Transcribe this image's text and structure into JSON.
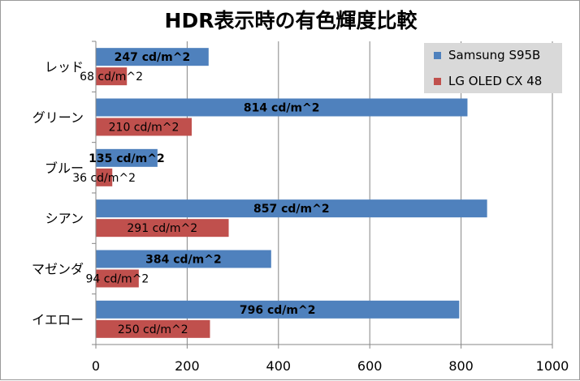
{
  "chart_data": {
    "type": "bar",
    "orientation": "horizontal",
    "title": "HDR表示時の有色輝度比較",
    "categories": [
      "レッド",
      "グリーン",
      "ブルー",
      "シアン",
      "マゼンダ",
      "イエロー"
    ],
    "series": [
      {
        "name": "Samsung S95B",
        "color": "#4f81bd",
        "values": [
          247,
          814,
          135,
          857,
          384,
          796
        ],
        "labels": [
          "247 cd/m^2",
          "814 cd/m^2",
          "135 cd/m^2",
          "857 cd/m^2",
          "384 cd/m^2",
          "796 cd/m^2"
        ]
      },
      {
        "name": "LG OLED CX 48",
        "color": "#c0504d",
        "values": [
          68,
          210,
          36,
          291,
          94,
          250
        ],
        "labels": [
          "68 cd/m^2",
          "210 cd/m^2",
          "36 cd/m^2",
          "291 cd/m^2",
          "94 cd/m^2",
          "250 cd/m^2"
        ]
      }
    ],
    "xlim": [
      0,
      1000
    ],
    "x_ticks": [
      0,
      200,
      400,
      600,
      800,
      1000
    ],
    "x_tick_labels": [
      "0",
      "200",
      "400",
      "600",
      "800",
      "1000"
    ],
    "grid": "vertical",
    "legend_position": "top-right",
    "legend_background": "#d9d9d9",
    "gridline_color": "#868686",
    "axis_color": "#868686"
  }
}
